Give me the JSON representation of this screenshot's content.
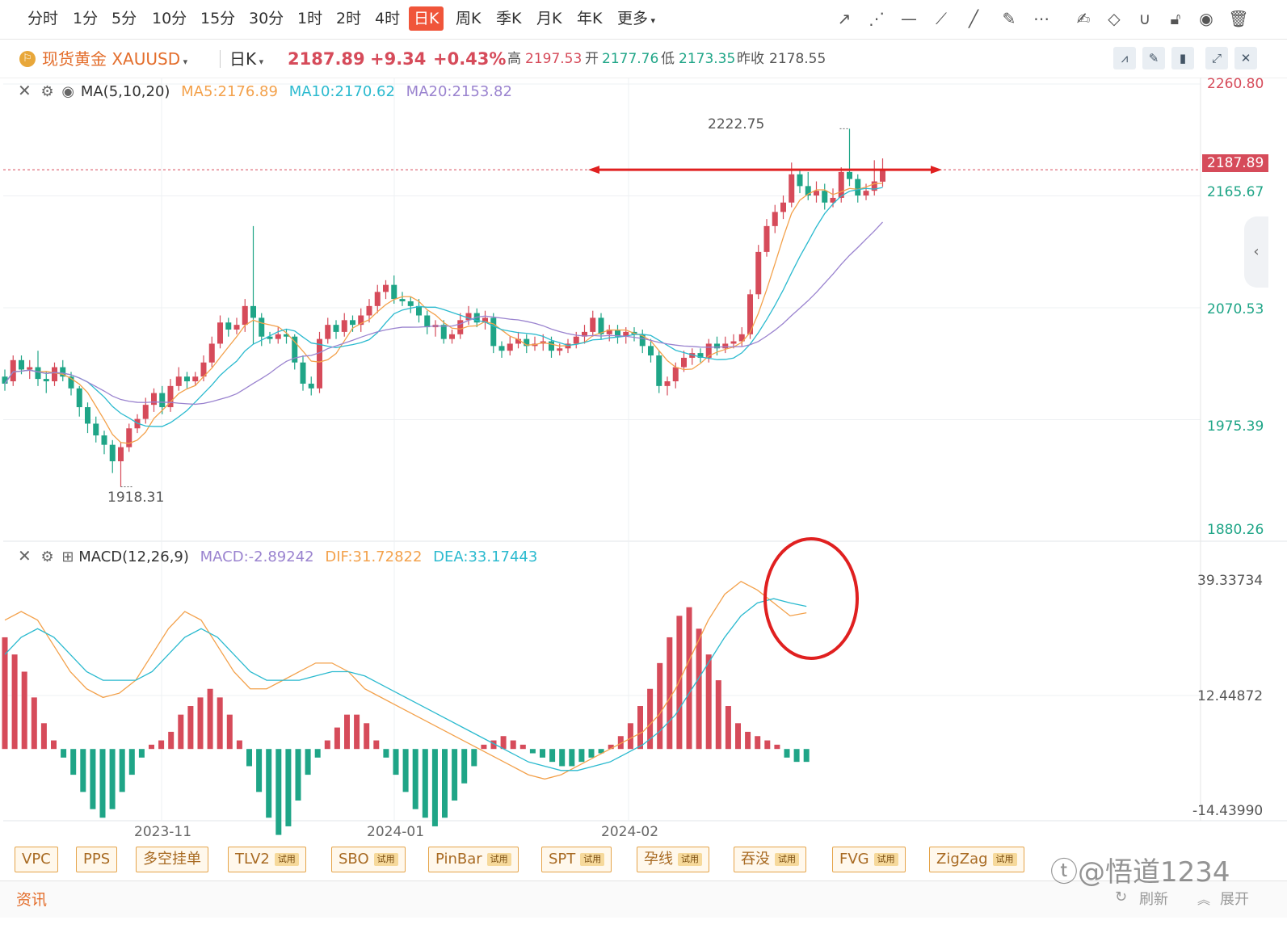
{
  "timeframes": [
    "分时",
    "1分",
    "5分",
    "10分",
    "15分",
    "30分",
    "1时",
    "2时",
    "4时",
    "日K",
    "周K",
    "季K",
    "月K",
    "年K",
    "更多"
  ],
  "active_timeframe": "日K",
  "symbol": {
    "name": "现货黄金 XAUUSD",
    "period": "日K",
    "price": "2187.89",
    "change": "+9.34",
    "change_pct": "+0.43%",
    "high_label": "高",
    "high": "2197.53",
    "open_label": "开",
    "open": "2177.76",
    "low_label": "低",
    "low": "2173.35",
    "prev_label": "昨收",
    "prev": "2178.55"
  },
  "ma_legend": {
    "name": "MA(5,10,20)",
    "ma5": "MA5:2176.89",
    "ma10": "MA10:2170.62",
    "ma20": "MA20:2153.82"
  },
  "macd_legend": {
    "name": "MACD(12,26,9)",
    "macd": "MACD:-2.89242",
    "dif": "DIF:31.72822",
    "dea": "DEA:33.17443"
  },
  "price_axis": [
    "2260.80",
    "2165.67",
    "2070.53",
    "1975.39",
    "1880.26"
  ],
  "current_price_tag": "2187.89",
  "high_marker": "2222.75",
  "low_marker": "1918.31",
  "macd_axis": [
    "39.33734",
    "12.44872",
    "-14.43990"
  ],
  "date_axis": [
    "2023-11",
    "2024-01",
    "2024-02"
  ],
  "indicators": [
    {
      "label": "VPC",
      "trial": ""
    },
    {
      "label": "PPS",
      "trial": ""
    },
    {
      "label": "多空挂单",
      "trial": ""
    },
    {
      "label": "TLV2",
      "trial": "试用"
    },
    {
      "label": "SBO",
      "trial": "试用"
    },
    {
      "label": "PinBar",
      "trial": "试用"
    },
    {
      "label": "SPT",
      "trial": "试用"
    },
    {
      "label": "孕线",
      "trial": "试用"
    },
    {
      "label": "吞没",
      "trial": "试用"
    },
    {
      "label": "FVG",
      "trial": "试用"
    },
    {
      "label": "ZigZag",
      "trial": "试用"
    }
  ],
  "news": {
    "label": "资讯",
    "refresh": "刷新",
    "expand": "展开"
  },
  "watermark": "@悟道1234",
  "colors": {
    "up": "#d64b5a",
    "down": "#1fa587",
    "ma5": "#f3a14b",
    "ma10": "#2bbacf",
    "ma20": "#9a83cf",
    "accent": "#f0553a",
    "annotation": "#e02020"
  },
  "chart_data": {
    "type": "candlestick",
    "ylim": [
      1880.26,
      2260.8
    ],
    "macd_ylim": [
      -14.4399,
      39.33734
    ],
    "candles": [
      [
        2012,
        2006,
        2018,
        2000
      ],
      [
        2008,
        2026,
        2030,
        2004
      ],
      [
        2026,
        2018,
        2030,
        2014
      ],
      [
        2018,
        2020,
        2026,
        2010
      ],
      [
        2020,
        2010,
        2034,
        2004
      ],
      [
        2010,
        2008,
        2016,
        1998
      ],
      [
        2008,
        2020,
        2024,
        2004
      ],
      [
        2020,
        2012,
        2026,
        2008
      ],
      [
        2012,
        2002,
        2016,
        1996
      ],
      [
        2002,
        1986,
        2004,
        1978
      ],
      [
        1986,
        1972,
        1990,
        1964
      ],
      [
        1972,
        1962,
        1978,
        1956
      ],
      [
        1962,
        1954,
        1966,
        1946
      ],
      [
        1954,
        1940,
        1958,
        1930
      ],
      [
        1940,
        1952,
        1956,
        1918.31
      ],
      [
        1952,
        1968,
        1972,
        1948
      ],
      [
        1968,
        1976,
        1980,
        1964
      ],
      [
        1976,
        1988,
        1994,
        1972
      ],
      [
        1988,
        1998,
        2002,
        1982
      ],
      [
        1998,
        1986,
        2004,
        1980
      ],
      [
        1986,
        2004,
        2010,
        1982
      ],
      [
        2004,
        2012,
        2020,
        2000
      ],
      [
        2012,
        2008,
        2016,
        2002
      ],
      [
        2008,
        2012,
        2016,
        2004
      ],
      [
        2012,
        2024,
        2030,
        2008
      ],
      [
        2024,
        2040,
        2046,
        2020
      ],
      [
        2040,
        2058,
        2064,
        2036
      ],
      [
        2058,
        2052,
        2062,
        2046
      ],
      [
        2052,
        2056,
        2062,
        2048
      ],
      [
        2056,
        2072,
        2078,
        2050
      ],
      [
        2072,
        2062,
        2140,
        2040
      ],
      [
        2062,
        2046,
        2066,
        2038
      ],
      [
        2046,
        2044,
        2050,
        2040
      ],
      [
        2044,
        2048,
        2054,
        2040
      ],
      [
        2048,
        2046,
        2052,
        2040
      ],
      [
        2046,
        2024,
        2048,
        2018
      ],
      [
        2024,
        2006,
        2030,
        2000
      ],
      [
        2006,
        2002,
        2012,
        1996
      ],
      [
        2002,
        2044,
        2050,
        1998
      ],
      [
        2044,
        2056,
        2062,
        2040
      ],
      [
        2056,
        2050,
        2060,
        2044
      ],
      [
        2050,
        2060,
        2066,
        2046
      ],
      [
        2060,
        2056,
        2064,
        2050
      ],
      [
        2056,
        2064,
        2070,
        2050
      ],
      [
        2064,
        2072,
        2078,
        2058
      ],
      [
        2072,
        2084,
        2090,
        2066
      ],
      [
        2084,
        2090,
        2094,
        2078
      ],
      [
        2090,
        2078,
        2098,
        2074
      ],
      [
        2078,
        2076,
        2084,
        2072
      ],
      [
        2076,
        2072,
        2080,
        2066
      ],
      [
        2072,
        2064,
        2078,
        2058
      ],
      [
        2064,
        2054,
        2068,
        2048
      ],
      [
        2054,
        2056,
        2060,
        2046
      ],
      [
        2056,
        2044,
        2060,
        2040
      ],
      [
        2044,
        2048,
        2052,
        2040
      ],
      [
        2048,
        2060,
        2066,
        2044
      ],
      [
        2060,
        2066,
        2072,
        2056
      ],
      [
        2066,
        2058,
        2070,
        2054
      ],
      [
        2058,
        2062,
        2068,
        2052
      ],
      [
        2062,
        2038,
        2066,
        2032
      ],
      [
        2038,
        2034,
        2042,
        2028
      ],
      [
        2034,
        2040,
        2046,
        2030
      ],
      [
        2040,
        2044,
        2050,
        2036
      ],
      [
        2044,
        2038,
        2048,
        2032
      ],
      [
        2038,
        2040,
        2046,
        2034
      ],
      [
        2040,
        2042,
        2048,
        2034
      ],
      [
        2042,
        2034,
        2046,
        2028
      ],
      [
        2034,
        2036,
        2040,
        2030
      ],
      [
        2036,
        2040,
        2044,
        2032
      ],
      [
        2040,
        2046,
        2050,
        2036
      ],
      [
        2046,
        2050,
        2056,
        2040
      ],
      [
        2050,
        2062,
        2068,
        2046
      ],
      [
        2062,
        2048,
        2066,
        2044
      ],
      [
        2048,
        2052,
        2056,
        2042
      ],
      [
        2052,
        2046,
        2056,
        2040
      ],
      [
        2046,
        2050,
        2054,
        2040
      ],
      [
        2050,
        2048,
        2054,
        2042
      ],
      [
        2048,
        2038,
        2052,
        2032
      ],
      [
        2038,
        2030,
        2044,
        2024
      ],
      [
        2030,
        2004,
        2034,
        1998
      ],
      [
        2004,
        2008,
        2012,
        1996
      ],
      [
        2008,
        2020,
        2024,
        2002
      ],
      [
        2020,
        2028,
        2034,
        2016
      ],
      [
        2028,
        2032,
        2036,
        2022
      ],
      [
        2032,
        2028,
        2036,
        2024
      ],
      [
        2028,
        2040,
        2044,
        2024
      ],
      [
        2040,
        2036,
        2046,
        2030
      ],
      [
        2036,
        2040,
        2046,
        2032
      ],
      [
        2040,
        2042,
        2048,
        2036
      ],
      [
        2042,
        2048,
        2054,
        2038
      ],
      [
        2048,
        2082,
        2086,
        2044
      ],
      [
        2082,
        2118,
        2124,
        2078
      ],
      [
        2118,
        2140,
        2146,
        2114
      ],
      [
        2140,
        2152,
        2158,
        2134
      ],
      [
        2152,
        2160,
        2166,
        2146
      ],
      [
        2160,
        2184,
        2194,
        2156
      ],
      [
        2184,
        2174,
        2188,
        2168
      ],
      [
        2174,
        2166,
        2186,
        2162
      ],
      [
        2166,
        2170,
        2178,
        2160
      ],
      [
        2170,
        2160,
        2176,
        2154
      ],
      [
        2160,
        2164,
        2172,
        2156
      ],
      [
        2164,
        2186,
        2190,
        2160
      ],
      [
        2186,
        2180,
        2222.75,
        2174
      ],
      [
        2180,
        2166,
        2184,
        2160
      ],
      [
        2166,
        2170,
        2176,
        2162
      ],
      [
        2170,
        2178,
        2196,
        2166
      ],
      [
        2177.76,
        2187.89,
        2197.53,
        2173.35
      ]
    ],
    "macd_hist": [
      26,
      22,
      18,
      12,
      6,
      2,
      -2,
      -6,
      -10,
      -14,
      -16,
      -14,
      -10,
      -6,
      -2,
      1,
      2,
      4,
      8,
      10,
      12,
      14,
      12,
      8,
      2,
      -4,
      -10,
      -16,
      -20,
      -18,
      -12,
      -6,
      -2,
      2,
      5,
      8,
      8,
      6,
      2,
      -2,
      -6,
      -10,
      -14,
      -16,
      -18,
      -16,
      -12,
      -8,
      -4,
      1,
      2,
      3,
      2,
      1,
      -1,
      -2,
      -3,
      -4,
      -4,
      -3,
      -2,
      -1,
      1,
      3,
      6,
      10,
      14,
      20,
      26,
      31,
      33,
      28,
      22,
      16,
      10,
      6,
      4,
      3,
      2,
      1,
      -2,
      -3,
      -3
    ],
    "dif": [
      30,
      32,
      30,
      24,
      18,
      14,
      12,
      13,
      16,
      22,
      28,
      32,
      30,
      24,
      18,
      14,
      14,
      16,
      18,
      20,
      20,
      18,
      14,
      12,
      10,
      8,
      6,
      4,
      2,
      0,
      -2,
      -4,
      -6,
      -7,
      -6,
      -4,
      -2,
      0,
      2,
      4,
      8,
      14,
      22,
      30,
      36,
      39,
      37,
      34,
      31,
      31.7
    ],
    "dea": [
      22,
      26,
      28,
      26,
      22,
      18,
      16,
      16,
      16,
      18,
      22,
      26,
      28,
      26,
      22,
      18,
      16,
      16,
      16,
      17,
      18,
      18,
      17,
      15,
      13,
      11,
      9,
      7,
      5,
      3,
      1,
      -1,
      -3,
      -4,
      -5,
      -5,
      -4,
      -3,
      -1,
      1,
      4,
      8,
      14,
      20,
      26,
      31,
      34,
      35,
      34,
      33.2
    ],
    "series": [
      {
        "name": "MA5",
        "color": "#f3a14b"
      },
      {
        "name": "MA10",
        "color": "#2bbacf"
      },
      {
        "name": "MA20",
        "color": "#9a83cf"
      },
      {
        "name": "DIF",
        "color": "#f3a14b"
      },
      {
        "name": "DEA",
        "color": "#2bbacf"
      }
    ]
  }
}
